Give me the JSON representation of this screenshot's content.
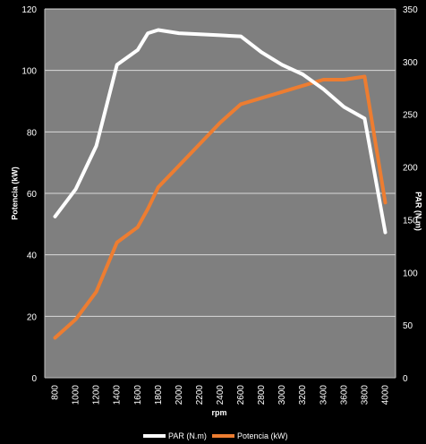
{
  "chart_data": {
    "type": "line",
    "xlabel": "rpm",
    "ylabel_left": "Potencia (kW)",
    "ylabel_right": "PAR (N.m)",
    "ylim_left": [
      0,
      120
    ],
    "ylim_right": [
      0,
      350
    ],
    "yticks_left": [
      0,
      20,
      40,
      60,
      80,
      100,
      120
    ],
    "yticks_right": [
      0,
      50,
      100,
      150,
      200,
      250,
      300,
      350
    ],
    "categories": [
      800,
      1000,
      1200,
      1400,
      1600,
      1800,
      2000,
      2200,
      2400,
      2600,
      2800,
      3000,
      3200,
      3400,
      3600,
      3800,
      4000
    ],
    "grid": true,
    "legend_position": "bottom",
    "colors": {
      "plot_background": "#7f7f7f",
      "page_background": "#000000",
      "gridline": "#d9d9d9"
    },
    "series": [
      {
        "name": "PAR (N.m)",
        "axis": "right",
        "color": "#ffffff",
        "points": [
          [
            800,
            153
          ],
          [
            1000,
            179
          ],
          [
            1200,
            220
          ],
          [
            1400,
            297
          ],
          [
            1600,
            311
          ],
          [
            1700,
            327
          ],
          [
            1800,
            330
          ],
          [
            2000,
            327
          ],
          [
            2200,
            326
          ],
          [
            2400,
            325
          ],
          [
            2600,
            324
          ],
          [
            2800,
            309
          ],
          [
            3000,
            297
          ],
          [
            3200,
            288
          ],
          [
            3400,
            274
          ],
          [
            3600,
            257
          ],
          [
            3800,
            246
          ],
          [
            4000,
            138
          ]
        ]
      },
      {
        "name": "Potencia (kW)",
        "axis": "left",
        "color": "#ed7d31",
        "points": [
          [
            800,
            13
          ],
          [
            1000,
            19
          ],
          [
            1200,
            28
          ],
          [
            1400,
            44
          ],
          [
            1600,
            49
          ],
          [
            1700,
            55
          ],
          [
            1800,
            62
          ],
          [
            2000,
            69
          ],
          [
            2200,
            76
          ],
          [
            2400,
            83
          ],
          [
            2600,
            89
          ],
          [
            2800,
            91
          ],
          [
            3000,
            93
          ],
          [
            3200,
            95
          ],
          [
            3400,
            97
          ],
          [
            3600,
            97
          ],
          [
            3800,
            98
          ],
          [
            4000,
            57
          ]
        ]
      }
    ]
  }
}
